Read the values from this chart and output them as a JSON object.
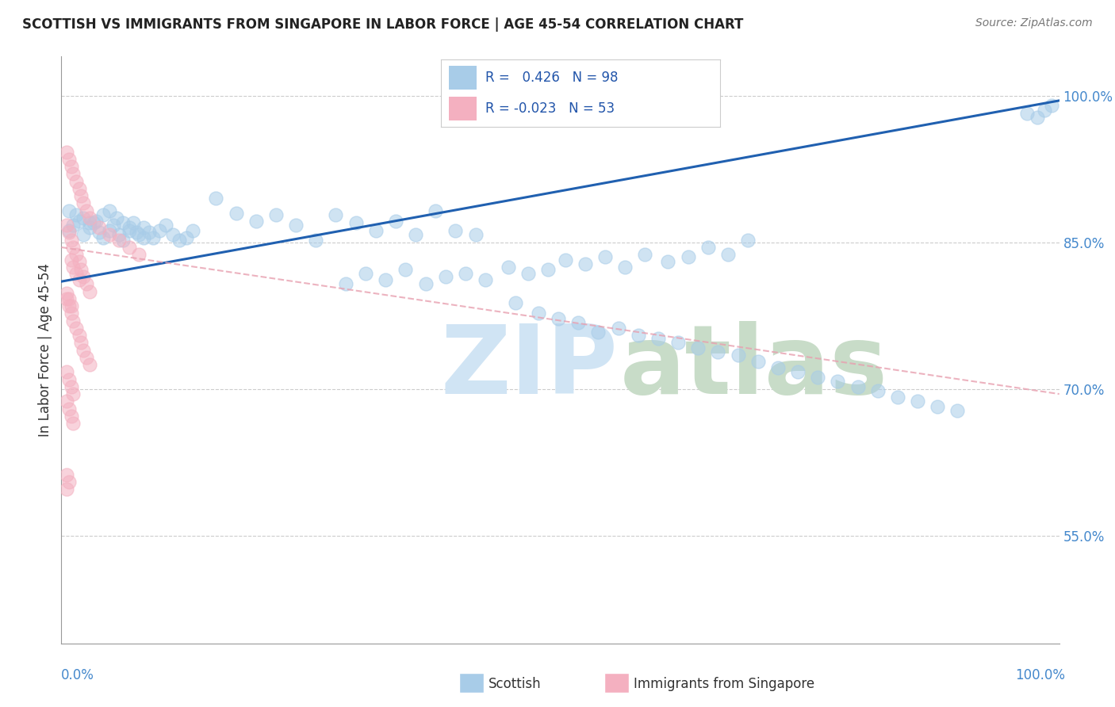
{
  "title": "SCOTTISH VS IMMIGRANTS FROM SINGAPORE IN LABOR FORCE | AGE 45-54 CORRELATION CHART",
  "source": "Source: ZipAtlas.com",
  "ylabel": "In Labor Force | Age 45-54",
  "y_ticks": [
    0.55,
    0.7,
    0.85,
    1.0
  ],
  "y_tick_labels": [
    "55.0%",
    "70.0%",
    "85.0%",
    "100.0%"
  ],
  "xlim": [
    0.0,
    1.0
  ],
  "ylim": [
    0.44,
    1.04
  ],
  "legend_r_blue": " 0.426",
  "legend_n_blue": "98",
  "legend_r_pink": "-0.023",
  "legend_n_pink": "53",
  "blue_color": "#a8cce8",
  "pink_color": "#f4b0c0",
  "line_blue": "#2060b0",
  "line_pink_color": "#e8a0b0",
  "watermark_zip_color": "#d0e4f4",
  "watermark_atlas_color": "#c8dcc8",
  "blue_scatter_x": [
    0.008,
    0.012,
    0.018,
    0.022,
    0.028,
    0.032,
    0.038,
    0.042,
    0.048,
    0.052,
    0.058,
    0.062,
    0.068,
    0.072,
    0.078,
    0.082,
    0.088,
    0.092,
    0.098,
    0.105,
    0.112,
    0.118,
    0.125,
    0.132,
    0.008,
    0.015,
    0.022,
    0.028,
    0.035,
    0.042,
    0.048,
    0.055,
    0.062,
    0.068,
    0.075,
    0.082,
    0.155,
    0.175,
    0.195,
    0.215,
    0.235,
    0.255,
    0.275,
    0.295,
    0.315,
    0.335,
    0.355,
    0.375,
    0.395,
    0.415,
    0.285,
    0.305,
    0.325,
    0.345,
    0.365,
    0.385,
    0.405,
    0.425,
    0.448,
    0.468,
    0.488,
    0.505,
    0.525,
    0.545,
    0.565,
    0.585,
    0.608,
    0.628,
    0.648,
    0.668,
    0.688,
    0.455,
    0.478,
    0.498,
    0.518,
    0.538,
    0.558,
    0.578,
    0.598,
    0.618,
    0.638,
    0.658,
    0.678,
    0.698,
    0.718,
    0.738,
    0.758,
    0.778,
    0.798,
    0.818,
    0.838,
    0.858,
    0.878,
    0.898,
    0.968,
    0.978,
    0.985,
    0.992
  ],
  "blue_scatter_y": [
    0.862,
    0.868,
    0.872,
    0.858,
    0.865,
    0.87,
    0.86,
    0.855,
    0.862,
    0.868,
    0.858,
    0.852,
    0.862,
    0.87,
    0.858,
    0.865,
    0.86,
    0.855,
    0.862,
    0.868,
    0.858,
    0.852,
    0.855,
    0.862,
    0.882,
    0.878,
    0.875,
    0.87,
    0.872,
    0.878,
    0.882,
    0.875,
    0.87,
    0.865,
    0.86,
    0.855,
    0.895,
    0.88,
    0.872,
    0.878,
    0.868,
    0.852,
    0.878,
    0.87,
    0.862,
    0.872,
    0.858,
    0.882,
    0.862,
    0.858,
    0.808,
    0.818,
    0.812,
    0.822,
    0.808,
    0.815,
    0.818,
    0.812,
    0.825,
    0.818,
    0.822,
    0.832,
    0.828,
    0.835,
    0.825,
    0.838,
    0.83,
    0.835,
    0.845,
    0.838,
    0.852,
    0.788,
    0.778,
    0.772,
    0.768,
    0.758,
    0.762,
    0.755,
    0.752,
    0.748,
    0.742,
    0.738,
    0.735,
    0.728,
    0.722,
    0.718,
    0.712,
    0.708,
    0.702,
    0.698,
    0.692,
    0.688,
    0.682,
    0.678,
    0.982,
    0.978,
    0.985,
    0.99
  ],
  "pink_scatter_x": [
    0.005,
    0.008,
    0.01,
    0.012,
    0.015,
    0.018,
    0.02,
    0.022,
    0.025,
    0.028,
    0.005,
    0.008,
    0.01,
    0.012,
    0.015,
    0.018,
    0.02,
    0.022,
    0.025,
    0.028,
    0.005,
    0.008,
    0.01,
    0.012,
    0.015,
    0.018,
    0.02,
    0.022,
    0.025,
    0.028,
    0.005,
    0.008,
    0.01,
    0.012,
    0.005,
    0.008,
    0.01,
    0.012,
    0.038,
    0.048,
    0.058,
    0.068,
    0.078,
    0.01,
    0.012,
    0.015,
    0.018,
    0.005,
    0.008,
    0.01,
    0.005,
    0.008,
    0.005
  ],
  "pink_scatter_y": [
    0.942,
    0.935,
    0.928,
    0.92,
    0.912,
    0.905,
    0.898,
    0.89,
    0.882,
    0.875,
    0.868,
    0.86,
    0.852,
    0.845,
    0.838,
    0.83,
    0.822,
    0.815,
    0.808,
    0.8,
    0.792,
    0.785,
    0.778,
    0.77,
    0.762,
    0.755,
    0.748,
    0.74,
    0.732,
    0.725,
    0.718,
    0.71,
    0.702,
    0.695,
    0.688,
    0.68,
    0.672,
    0.665,
    0.865,
    0.858,
    0.852,
    0.845,
    0.838,
    0.832,
    0.825,
    0.818,
    0.812,
    0.798,
    0.792,
    0.785,
    0.612,
    0.605,
    0.598
  ],
  "blue_trend_x": [
    0.0,
    1.0
  ],
  "blue_trend_y": [
    0.81,
    0.995
  ],
  "pink_trend_x": [
    0.0,
    1.0
  ],
  "pink_trend_y": [
    0.845,
    0.695
  ]
}
